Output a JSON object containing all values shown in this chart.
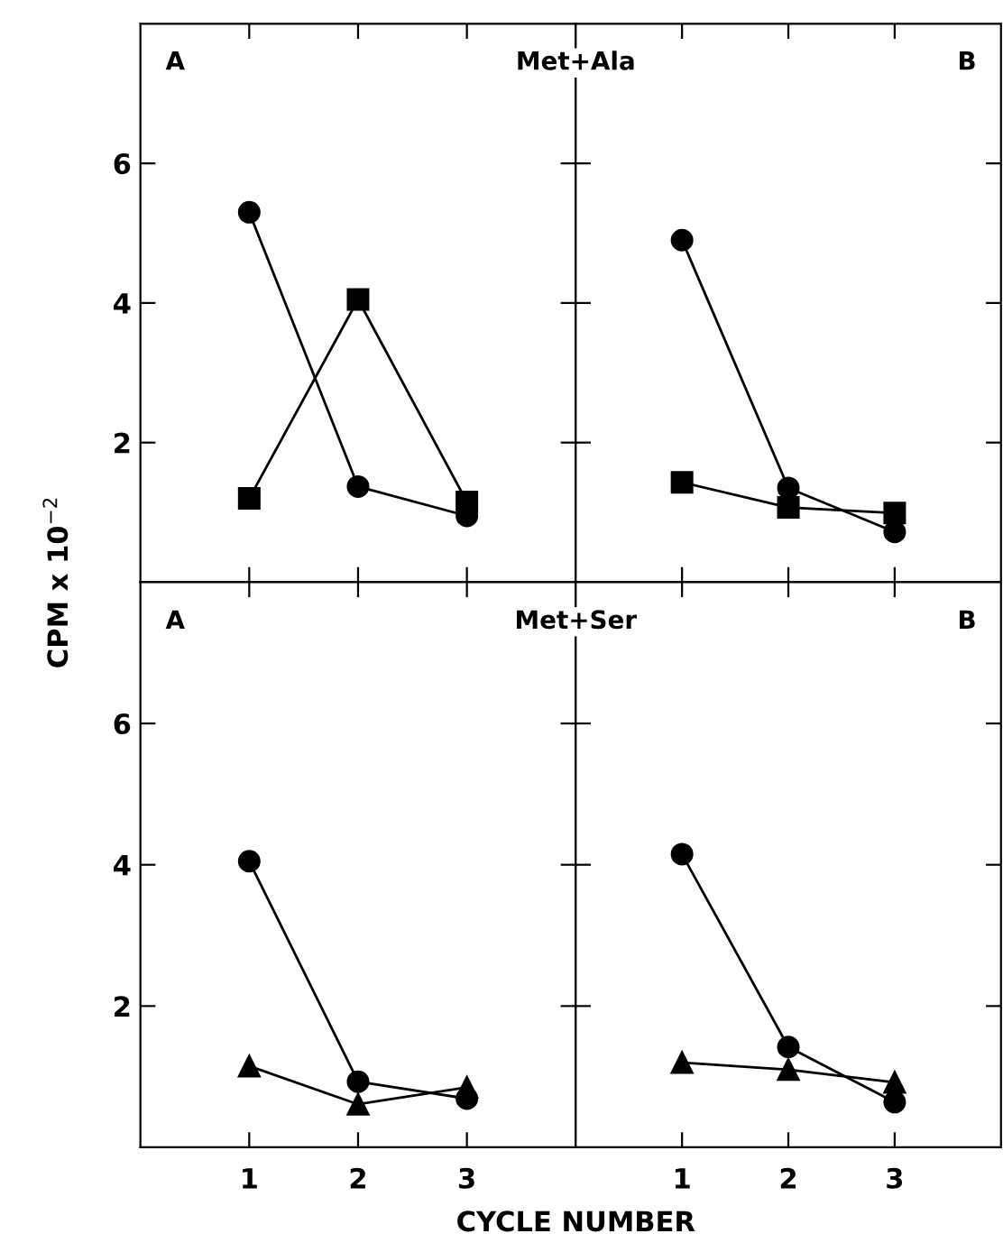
{
  "chart_data": [
    {
      "type": "line",
      "title": "A",
      "ylabel": "CPM x 10$^{−2}$",
      "annotations": [
        "Met+Ala"
      ],
      "x": [
        1,
        2,
        3
      ],
      "xlim": [
        0,
        4
      ],
      "xticks": [
        1,
        2,
        3
      ],
      "ylim": [
        0,
        8
      ],
      "yticks": [
        2,
        4,
        6
      ],
      "tick_labels": "y",
      "grid": false,
      "legend": false,
      "line_style": "solid",
      "series": [
        {
          "color": "#000000",
          "marker": "circle",
          "values": [
            5.3,
            1.37,
            0.95
          ]
        },
        {
          "color": "#000000",
          "marker": "square",
          "values": [
            1.2,
            4.05,
            1.15
          ]
        }
      ]
    },
    {
      "type": "line",
      "title": "B",
      "x": [
        1,
        2,
        3
      ],
      "xlim": [
        0,
        4
      ],
      "xticks": [
        1,
        2,
        3
      ],
      "ylim": [
        0,
        8
      ],
      "yticks": [
        {
          "value": 2,
          "label": null
        },
        {
          "value": 4,
          "label": null
        },
        {
          "value": 6,
          "label": null
        }
      ],
      "tick_labels": false,
      "grid": false,
      "legend": false,
      "line_style": "solid",
      "series": [
        {
          "color": "#000000",
          "marker": "circle",
          "values": [
            4.9,
            1.35,
            0.72
          ]
        },
        {
          "color": "#000000",
          "marker": "square",
          "values": [
            1.43,
            1.07,
            0.99
          ]
        }
      ]
    },
    {
      "type": "line",
      "title": "A",
      "xlabel": "CYCLE NUMBER",
      "annotations": [
        "Met+Ser"
      ],
      "x": [
        1,
        2,
        3
      ],
      "xlim": [
        0,
        4
      ],
      "xticks": [
        1,
        2,
        3
      ],
      "ylim": [
        0,
        8
      ],
      "yticks": [
        2,
        4,
        6
      ],
      "grid": false,
      "legend": false,
      "line_style": "solid",
      "series": [
        {
          "color": "#000000",
          "marker": "circle",
          "values": [
            4.05,
            0.93,
            0.69
          ]
        },
        {
          "color": "#000000",
          "marker": "triangle",
          "values": [
            1.15,
            0.61,
            0.85
          ]
        }
      ]
    },
    {
      "type": "line",
      "title": "B",
      "x": [
        1,
        2,
        3
      ],
      "xlim": [
        0,
        4
      ],
      "xticks": [
        1,
        2,
        3
      ],
      "ylim": [
        0,
        8
      ],
      "yticks": [
        {
          "value": 2,
          "label": null
        },
        {
          "value": 4,
          "label": null
        },
        {
          "value": 6,
          "label": null
        }
      ],
      "tick_labels": "x",
      "grid": false,
      "legend": false,
      "line_style": "solid",
      "series": [
        {
          "color": "#000000",
          "marker": "circle",
          "values": [
            4.15,
            1.42,
            0.64
          ]
        },
        {
          "color": "#000000",
          "marker": "triangle",
          "values": [
            1.2,
            1.1,
            0.92
          ]
        }
      ]
    }
  ]
}
